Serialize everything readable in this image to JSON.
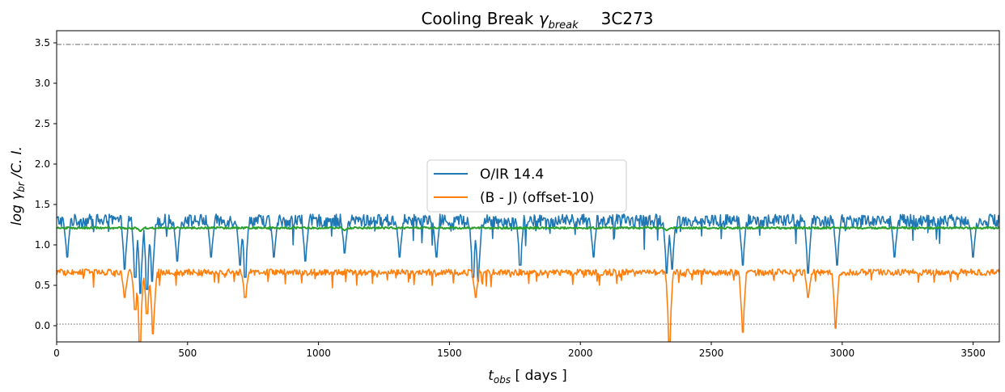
{
  "chart_data": {
    "type": "line",
    "title": "Cooling Break γbreak    3C273",
    "title_parts": {
      "main": "Cooling Break ",
      "symbol": "γ",
      "subscript": "break",
      "source": "3C273"
    },
    "xlabel_parts": {
      "symbol": "t",
      "subscript": "obs",
      "suffix": " [ days ]"
    },
    "ylabel_parts": {
      "prefix": "log γ",
      "subscript": "br",
      "suffix": " /C. I."
    },
    "xlim": [
      0,
      3600
    ],
    "ylim": [
      -0.2,
      3.65
    ],
    "x_ticks": [
      "0",
      "500",
      "1000",
      "1500",
      "2000",
      "2500",
      "3000",
      "3500"
    ],
    "x_tick_values": [
      0,
      500,
      1000,
      1500,
      2000,
      2500,
      3000,
      3500
    ],
    "y_ticks": [
      "0.0",
      "0.5",
      "1.0",
      "1.5",
      "2.0",
      "2.5",
      "3.0",
      "3.5"
    ],
    "y_tick_values": [
      0.0,
      0.5,
      1.0,
      1.5,
      2.0,
      2.5,
      3.0,
      3.5
    ],
    "hlines": [
      {
        "y": 3.48,
        "style": "dash-dot",
        "color": "#333333"
      },
      {
        "y": 0.02,
        "style": "dotted",
        "color": "#333333"
      }
    ],
    "grid": false,
    "legend_position": "center",
    "series": [
      {
        "name": "O/IR 14.4",
        "color": "#1f77b4",
        "baseline": 1.3,
        "noise": 0.08,
        "dips": [
          {
            "x": 40,
            "y": 0.85
          },
          {
            "x": 260,
            "y": 0.7
          },
          {
            "x": 300,
            "y": 0.6
          },
          {
            "x": 320,
            "y": 0.4
          },
          {
            "x": 345,
            "y": 0.45
          },
          {
            "x": 365,
            "y": 0.55
          },
          {
            "x": 460,
            "y": 0.8
          },
          {
            "x": 590,
            "y": 0.85
          },
          {
            "x": 700,
            "y": 0.75
          },
          {
            "x": 720,
            "y": 0.6
          },
          {
            "x": 830,
            "y": 0.85
          },
          {
            "x": 950,
            "y": 0.8
          },
          {
            "x": 1100,
            "y": 0.9
          },
          {
            "x": 1310,
            "y": 0.85
          },
          {
            "x": 1450,
            "y": 0.85
          },
          {
            "x": 1590,
            "y": 0.6
          },
          {
            "x": 1610,
            "y": 0.55
          },
          {
            "x": 1770,
            "y": 0.75
          },
          {
            "x": 2050,
            "y": 0.85
          },
          {
            "x": 2330,
            "y": 0.65
          },
          {
            "x": 2350,
            "y": 0.7
          },
          {
            "x": 2620,
            "y": 0.75
          },
          {
            "x": 2870,
            "y": 0.65
          },
          {
            "x": 2980,
            "y": 0.75
          },
          {
            "x": 3200,
            "y": 0.85
          },
          {
            "x": 3500,
            "y": 0.85
          }
        ]
      },
      {
        "name": "(B - J)  (offset-10)",
        "color": "#ff7f0e",
        "baseline": 0.66,
        "noise": 0.04,
        "dips": [
          {
            "x": 260,
            "y": 0.35
          },
          {
            "x": 300,
            "y": 0.2
          },
          {
            "x": 318,
            "y": -0.2
          },
          {
            "x": 345,
            "y": 0.15
          },
          {
            "x": 368,
            "y": -0.1
          },
          {
            "x": 720,
            "y": 0.35
          },
          {
            "x": 1600,
            "y": 0.35
          },
          {
            "x": 2340,
            "y": -0.2
          },
          {
            "x": 2620,
            "y": -0.08
          },
          {
            "x": 2870,
            "y": 0.35
          },
          {
            "x": 2975,
            "y": -0.03
          }
        ]
      },
      {
        "name": "",
        "color": "#2ca02c",
        "baseline": 1.21,
        "noise": 0.012,
        "dips": [
          {
            "x": 320,
            "y": 1.17
          },
          {
            "x": 1100,
            "y": 1.18
          },
          {
            "x": 2330,
            "y": 1.18
          }
        ]
      }
    ]
  }
}
